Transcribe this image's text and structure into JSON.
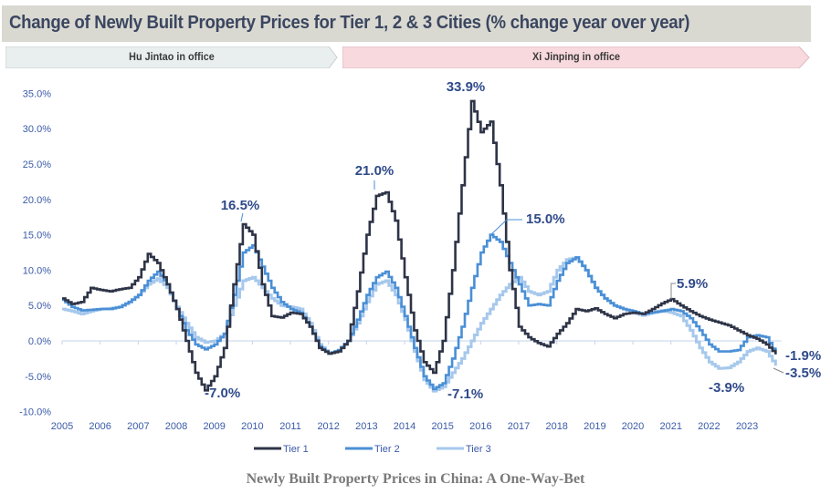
{
  "header": {
    "title": "Change of Newly Built Property Prices for Tier 1, 2 & 3 Cities (% change year over year)"
  },
  "bands": [
    {
      "label": "Hu Jintao in office",
      "color": "#e9eeef"
    },
    {
      "label": "Xi Jinping in office",
      "color": "#f7d9de"
    }
  ],
  "caption": "Newly Built Property Prices in China: A One-Way-Bet",
  "colors": {
    "tier1": "#2e3447",
    "tier2": "#4a8fd6",
    "tier3": "#a6c8ec",
    "axis_text": "#3a5aa8",
    "annotation": "#2f4a8a",
    "zero_line": "#c5d3ea"
  },
  "chart_data": {
    "type": "line",
    "title": "Change of Newly Built Property Prices for Tier 1, 2 & 3 Cities (% change year over year)",
    "xlabel": "",
    "ylabel": "",
    "x_ticks": [
      "2005",
      "2006",
      "2007",
      "2008",
      "2009",
      "2010",
      "2011",
      "2012",
      "2013",
      "2014",
      "2015",
      "2016",
      "2017",
      "2018",
      "2019",
      "2020",
      "2021",
      "2022",
      "2023"
    ],
    "y_ticks": [
      "35.0%",
      "30.0%",
      "25.0%",
      "20.0%",
      "15.0%",
      "10.0%",
      "5.0%",
      "0.0%",
      "-5.0%",
      "-10.0%"
    ],
    "xlim": [
      2005,
      2023.9
    ],
    "ylim": [
      -10,
      35
    ],
    "grid": false,
    "legend": {
      "position": "bottom",
      "entries": [
        "Tier 1",
        "Tier 2",
        "Tier 3"
      ]
    },
    "series": [
      {
        "name": "Tier 1",
        "x": [
          2005.0,
          2005.25,
          2005.5,
          2005.75,
          2006.0,
          2006.25,
          2006.5,
          2006.75,
          2007.0,
          2007.25,
          2007.5,
          2007.75,
          2008.0,
          2008.25,
          2008.5,
          2008.75,
          2009.0,
          2009.25,
          2009.5,
          2009.75,
          2010.0,
          2010.25,
          2010.5,
          2010.75,
          2011.0,
          2011.25,
          2011.5,
          2011.75,
          2012.0,
          2012.25,
          2012.5,
          2012.75,
          2013.0,
          2013.25,
          2013.5,
          2013.75,
          2014.0,
          2014.25,
          2014.5,
          2014.75,
          2015.0,
          2015.25,
          2015.5,
          2015.75,
          2016.0,
          2016.25,
          2016.5,
          2016.75,
          2017.0,
          2017.25,
          2017.5,
          2017.75,
          2018.0,
          2018.25,
          2018.5,
          2018.75,
          2019.0,
          2019.25,
          2019.5,
          2019.75,
          2020.0,
          2020.25,
          2020.5,
          2020.75,
          2021.0,
          2021.25,
          2021.5,
          2021.75,
          2022.0,
          2022.25,
          2022.5,
          2022.75,
          2023.0,
          2023.25,
          2023.5,
          2023.75
        ],
        "values": [
          6.0,
          5.2,
          5.5,
          7.5,
          7.2,
          7.0,
          7.3,
          7.5,
          9.0,
          12.3,
          11.0,
          8.0,
          4.5,
          0.0,
          -4.5,
          -7.0,
          -5.0,
          -1.0,
          8.0,
          16.5,
          15.0,
          8.0,
          3.5,
          3.3,
          4.0,
          3.8,
          2.0,
          -1.0,
          -1.8,
          -1.5,
          0.0,
          7.0,
          15.0,
          20.5,
          21.0,
          17.0,
          9.0,
          1.5,
          -3.0,
          -4.5,
          0.0,
          10.0,
          22.0,
          33.9,
          29.5,
          31.0,
          22.0,
          10.0,
          2.0,
          0.5,
          -0.3,
          -0.8,
          1.0,
          2.5,
          4.5,
          4.2,
          4.6,
          3.8,
          3.2,
          3.8,
          4.0,
          3.8,
          4.5,
          5.3,
          5.9,
          5.0,
          4.2,
          3.5,
          3.0,
          2.6,
          2.2,
          1.5,
          0.8,
          0.3,
          -0.5,
          -1.9
        ]
      },
      {
        "name": "Tier 2",
        "x": [
          2005.0,
          2005.25,
          2005.5,
          2005.75,
          2006.0,
          2006.25,
          2006.5,
          2006.75,
          2007.0,
          2007.25,
          2007.5,
          2007.75,
          2008.0,
          2008.25,
          2008.5,
          2008.75,
          2009.0,
          2009.25,
          2009.5,
          2009.75,
          2010.0,
          2010.25,
          2010.5,
          2010.75,
          2011.0,
          2011.25,
          2011.5,
          2011.75,
          2012.0,
          2012.25,
          2012.5,
          2012.75,
          2013.0,
          2013.25,
          2013.5,
          2013.75,
          2014.0,
          2014.25,
          2014.5,
          2014.75,
          2015.0,
          2015.25,
          2015.5,
          2015.75,
          2016.0,
          2016.25,
          2016.5,
          2016.75,
          2017.0,
          2017.25,
          2017.5,
          2017.75,
          2018.0,
          2018.25,
          2018.5,
          2018.75,
          2019.0,
          2019.25,
          2019.5,
          2019.75,
          2020.0,
          2020.25,
          2020.5,
          2020.75,
          2021.0,
          2021.25,
          2021.5,
          2021.75,
          2022.0,
          2022.25,
          2022.5,
          2022.75,
          2023.0,
          2023.25,
          2023.5,
          2023.75
        ],
        "values": [
          5.8,
          4.8,
          4.3,
          4.4,
          4.5,
          4.5,
          4.8,
          5.5,
          6.5,
          8.5,
          9.8,
          8.0,
          4.5,
          1.5,
          -0.5,
          -1.2,
          -0.5,
          1.0,
          6.5,
          12.5,
          13.5,
          10.5,
          7.5,
          5.5,
          4.5,
          4.0,
          2.0,
          -0.8,
          -1.8,
          -1.3,
          0.0,
          3.0,
          6.5,
          9.0,
          9.8,
          7.5,
          3.5,
          -1.0,
          -5.0,
          -6.8,
          -6.0,
          -2.5,
          2.0,
          7.5,
          12.5,
          15.0,
          14.0,
          11.0,
          8.0,
          5.0,
          5.2,
          5.0,
          8.5,
          11.0,
          11.8,
          10.0,
          7.5,
          6.0,
          5.0,
          4.5,
          4.2,
          3.8,
          4.0,
          4.2,
          4.5,
          4.2,
          3.2,
          1.5,
          -0.5,
          -1.5,
          -1.5,
          -1.3,
          0.5,
          0.8,
          0.5,
          -1.9
        ]
      },
      {
        "name": "Tier 3",
        "x": [
          2005.0,
          2005.25,
          2005.5,
          2005.75,
          2006.0,
          2006.25,
          2006.5,
          2006.75,
          2007.0,
          2007.25,
          2007.5,
          2007.75,
          2008.0,
          2008.25,
          2008.5,
          2008.75,
          2009.0,
          2009.25,
          2009.5,
          2009.75,
          2010.0,
          2010.25,
          2010.5,
          2010.75,
          2011.0,
          2011.25,
          2011.5,
          2011.75,
          2012.0,
          2012.25,
          2012.5,
          2012.75,
          2013.0,
          2013.25,
          2013.5,
          2013.75,
          2014.0,
          2014.25,
          2014.5,
          2014.75,
          2015.0,
          2015.25,
          2015.5,
          2015.75,
          2016.0,
          2016.25,
          2016.5,
          2016.75,
          2017.0,
          2017.25,
          2017.5,
          2017.75,
          2018.0,
          2018.25,
          2018.5,
          2018.75,
          2019.0,
          2019.25,
          2019.5,
          2019.75,
          2020.0,
          2020.25,
          2020.5,
          2020.75,
          2021.0,
          2021.25,
          2021.5,
          2021.75,
          2022.0,
          2022.25,
          2022.5,
          2022.75,
          2023.0,
          2023.25,
          2023.5,
          2023.75
        ],
        "values": [
          4.5,
          4.2,
          3.8,
          4.2,
          4.5,
          4.6,
          4.8,
          5.5,
          6.5,
          8.0,
          8.8,
          7.5,
          4.8,
          2.5,
          0.5,
          -0.2,
          0.0,
          1.0,
          5.0,
          8.5,
          9.0,
          7.5,
          6.0,
          5.0,
          4.8,
          4.5,
          2.5,
          -0.5,
          -1.8,
          -1.4,
          0.0,
          2.5,
          5.5,
          8.0,
          8.5,
          6.5,
          3.0,
          -1.5,
          -5.5,
          -7.1,
          -6.5,
          -4.5,
          -2.5,
          0.0,
          2.5,
          4.5,
          6.5,
          8.0,
          9.0,
          7.0,
          6.5,
          7.0,
          10.0,
          11.5,
          11.8,
          10.0,
          7.5,
          6.0,
          5.0,
          4.5,
          4.0,
          3.6,
          4.0,
          4.3,
          4.0,
          3.5,
          1.5,
          -1.0,
          -3.0,
          -3.9,
          -3.8,
          -3.0,
          -1.5,
          -1.0,
          -1.5,
          -3.5
        ]
      }
    ],
    "annotations": [
      {
        "text": "16.5%",
        "series": "Tier 1",
        "x": 2009.75,
        "y": 16.5
      },
      {
        "text": "-7.0%",
        "series": "Tier 1",
        "x": 2008.75,
        "y": -7.0
      },
      {
        "text": "21.0%",
        "series": "Tier 1",
        "x": 2013.5,
        "y": 21.0
      },
      {
        "text": "33.9%",
        "series": "Tier 1",
        "x": 2015.75,
        "y": 33.9
      },
      {
        "text": "-7.1%",
        "series": "Tier 3",
        "x": 2014.75,
        "y": -7.1
      },
      {
        "text": "15.0%",
        "series": "Tier 2",
        "x": 2016.25,
        "y": 15.0
      },
      {
        "text": "5.9%",
        "series": "Tier 1",
        "x": 2021.0,
        "y": 5.9
      },
      {
        "text": "-3.9%",
        "series": "Tier 3",
        "x": 2022.25,
        "y": -3.9
      },
      {
        "text": "-1.9%",
        "series": "Tier 1/Tier 2",
        "x": 2023.75,
        "y": -1.9
      },
      {
        "text": "-3.5%",
        "series": "Tier 3",
        "x": 2023.75,
        "y": -3.5
      }
    ]
  }
}
